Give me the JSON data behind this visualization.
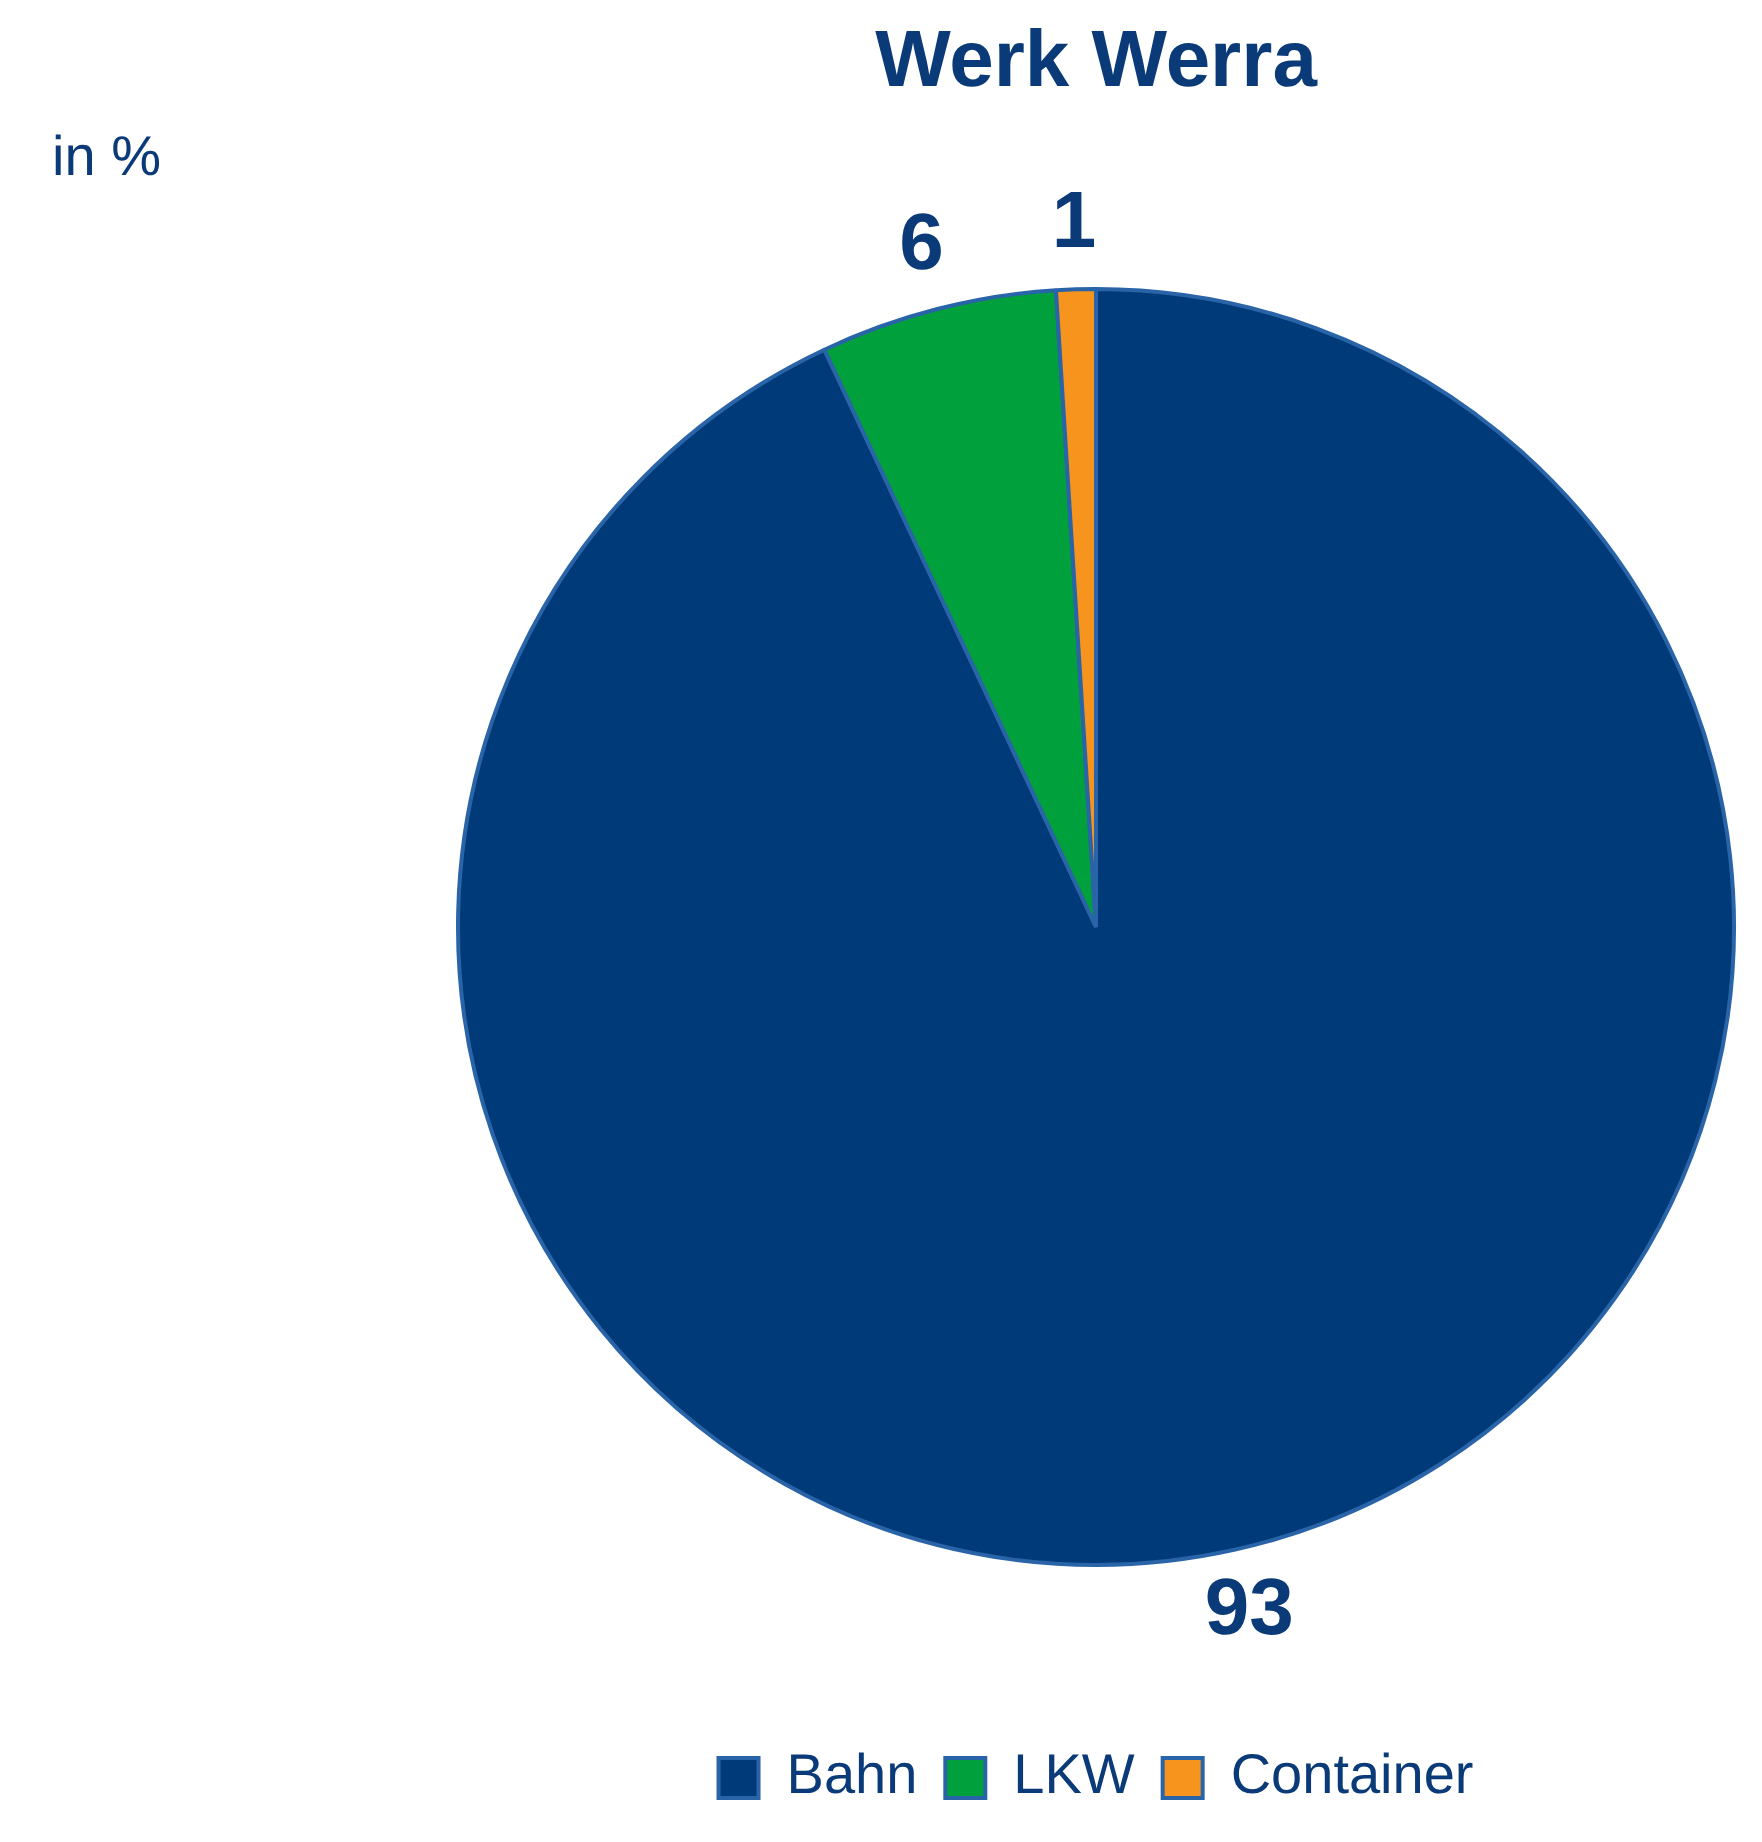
{
  "chart_data": {
    "type": "pie",
    "title": "Werk Werra",
    "categories": [
      "Bahn",
      "LKW",
      "Container"
    ],
    "values": [
      93,
      6,
      1
    ],
    "colors": [
      "#003a78",
      "#00a03c",
      "#f7941d"
    ],
    "data_labels": true,
    "legend": "bottom",
    "annotations": [
      "in %"
    ]
  }
}
